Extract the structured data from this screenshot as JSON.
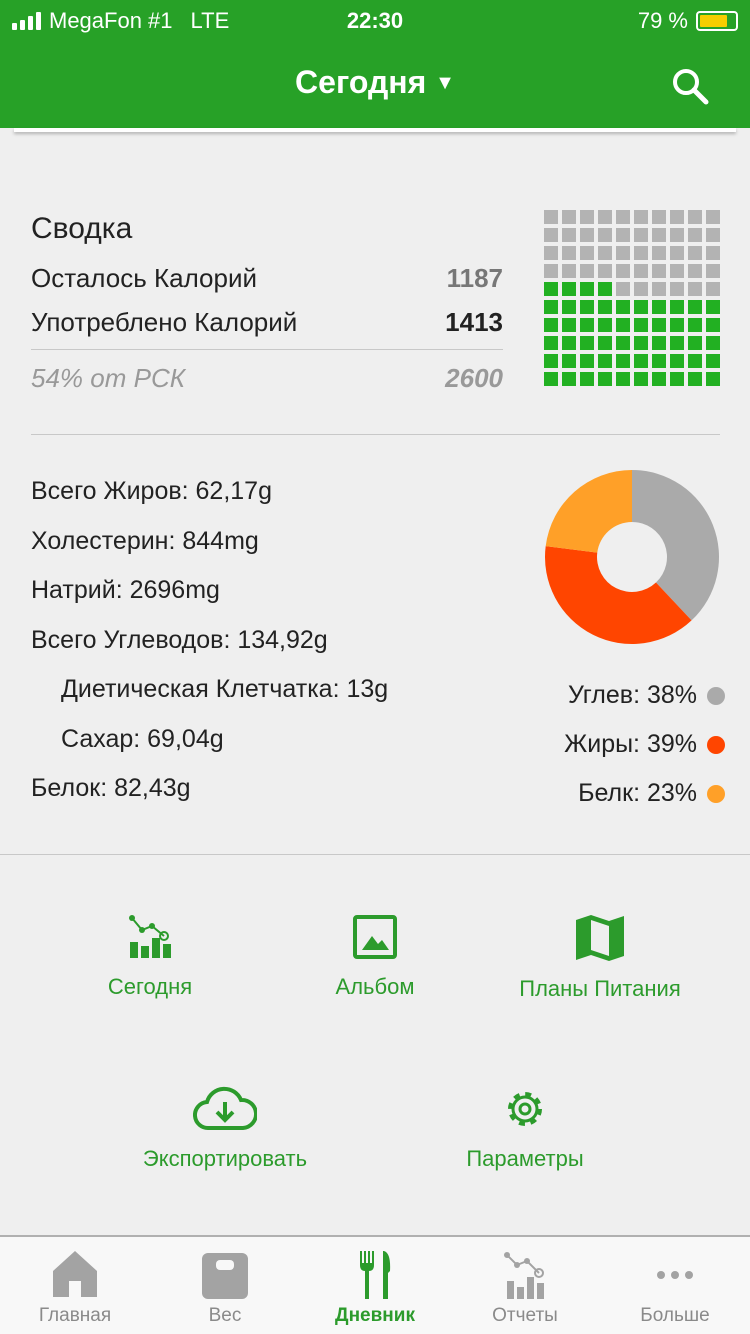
{
  "status_bar": {
    "carrier": "MegaFon #1",
    "network": "LTE",
    "time": "22:30",
    "battery": "79 %",
    "battery_level": 79
  },
  "header": {
    "title": "Сегодня"
  },
  "summary": {
    "title": "Сводка",
    "remaining_label": "Осталось Калорий",
    "remaining_value": "1187",
    "consumed_label": "Употреблено Калорий",
    "consumed_value": "1413",
    "percent_label": "54% от РСК",
    "goal_value": "2600",
    "waffle_filled": 54,
    "waffle_total": 100
  },
  "nutrients": [
    {
      "label": "Всего Жиров: 62,17g",
      "indent": false
    },
    {
      "label": "Холестерин: 844mg",
      "indent": false
    },
    {
      "label": "Натрий: 2696mg",
      "indent": false
    },
    {
      "label": "Всего Углеводов: 134,92g",
      "indent": false
    },
    {
      "label": "Диетическая Клетчатка: 13g",
      "indent": true
    },
    {
      "label": "Сахар: 69,04g",
      "indent": true
    },
    {
      "label": "Белок: 82,43g",
      "indent": false
    }
  ],
  "chart_data": {
    "type": "pie",
    "donut": true,
    "slices": [
      {
        "label": "Углев: 38%",
        "value": 38,
        "color": "#aaaaaa"
      },
      {
        "label": "Жиры: 39%",
        "value": 39,
        "color": "#ff4500"
      },
      {
        "label": "Белк: 23%",
        "value": 23,
        "color": "#ffa028"
      }
    ]
  },
  "actions": [
    {
      "label": "Сегодня",
      "icon": "chart-icon"
    },
    {
      "label": "Альбом",
      "icon": "image-icon"
    },
    {
      "label": "Планы Питания",
      "icon": "map-icon"
    },
    {
      "label": "Экспортировать",
      "icon": "cloud-download-icon"
    },
    {
      "label": "Параметры",
      "icon": "gear-icon"
    }
  ],
  "tabs": [
    {
      "label": "Главная"
    },
    {
      "label": "Вес"
    },
    {
      "label": "Дневник",
      "active": true
    },
    {
      "label": "Отчеты"
    },
    {
      "label": "Больше"
    }
  ],
  "colors": {
    "brand": "#27a127",
    "waffle_filled": "#22b022",
    "waffle_empty": "#b3b3b3"
  }
}
